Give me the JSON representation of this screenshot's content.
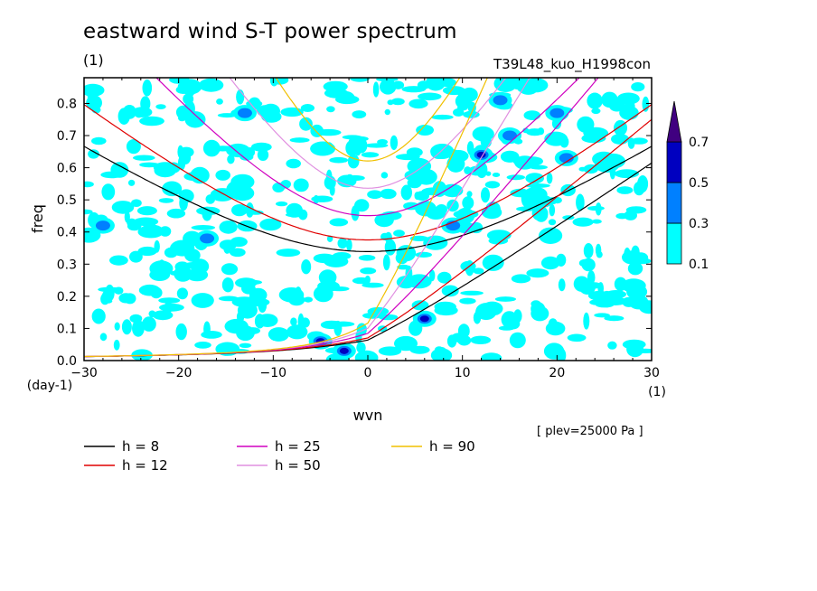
{
  "header": {
    "title": "eastward wind S-T power spectrum",
    "title_unit": "(1)",
    "run_label": "T39L48_kuo_H1998con",
    "note": "[ plev=25000 Pa ]"
  },
  "chart_data": {
    "type": "heatmap",
    "title": "eastward wind S-T power spectrum",
    "xlabel": "wvn",
    "x_unit": "(1)",
    "ylabel": "freq",
    "y_unit": "(day-1)",
    "xlim": [
      -30,
      30
    ],
    "ylim": [
      0,
      0.88
    ],
    "x_ticks": [
      -30,
      -20,
      -10,
      0,
      10,
      20,
      30
    ],
    "y_ticks": [
      0.0,
      0.1,
      0.2,
      0.3,
      0.4,
      0.5,
      0.6,
      0.7,
      0.8
    ],
    "x_tick_labels": [
      "−30",
      "−20",
      "−10",
      "0",
      "10",
      "20",
      "30"
    ],
    "y_tick_labels": [
      "0.0",
      "0.1",
      "0.2",
      "0.3",
      "0.4",
      "0.5",
      "0.6",
      "0.7",
      "0.8"
    ],
    "colorbar": {
      "levels": [
        0.1,
        0.3,
        0.5,
        0.7
      ],
      "level_labels": [
        "0.1",
        "0.3",
        "0.5",
        "0.7"
      ],
      "colors": [
        "#00ffff",
        "#0080ff",
        "#0000c0",
        "#400080"
      ],
      "extend": "max"
    },
    "dispersion_curves": [
      {
        "name": "h = 8",
        "h": 8,
        "color": "#000000"
      },
      {
        "name": "h = 12",
        "h": 12,
        "color": "#e00000"
      },
      {
        "name": "h = 25",
        "h": 25,
        "color": "#d000c0"
      },
      {
        "name": "h = 50",
        "h": 50,
        "color": "#e090e0"
      },
      {
        "name": "h = 90",
        "h": 90,
        "color": "#f0c000"
      }
    ],
    "strong_spots": [
      {
        "wvn": -5,
        "freq": 0.06,
        "level": 0.5
      },
      {
        "wvn": -2.5,
        "freq": 0.03,
        "level": 0.5
      },
      {
        "wvn": 6,
        "freq": 0.13,
        "level": 0.5
      },
      {
        "wvn": 12,
        "freq": 0.64,
        "level": 0.5
      },
      {
        "wvn": 15,
        "freq": 0.7,
        "level": 0.3
      },
      {
        "wvn": 21,
        "freq": 0.63,
        "level": 0.3
      },
      {
        "wvn": 20,
        "freq": 0.77,
        "level": 0.3
      },
      {
        "wvn": 14,
        "freq": 0.81,
        "level": 0.3
      },
      {
        "wvn": 9,
        "freq": 0.42,
        "level": 0.3
      },
      {
        "wvn": -17,
        "freq": 0.38,
        "level": 0.3
      },
      {
        "wvn": -28,
        "freq": 0.42,
        "level": 0.3
      },
      {
        "wvn": -13,
        "freq": 0.77,
        "level": 0.3
      }
    ]
  }
}
